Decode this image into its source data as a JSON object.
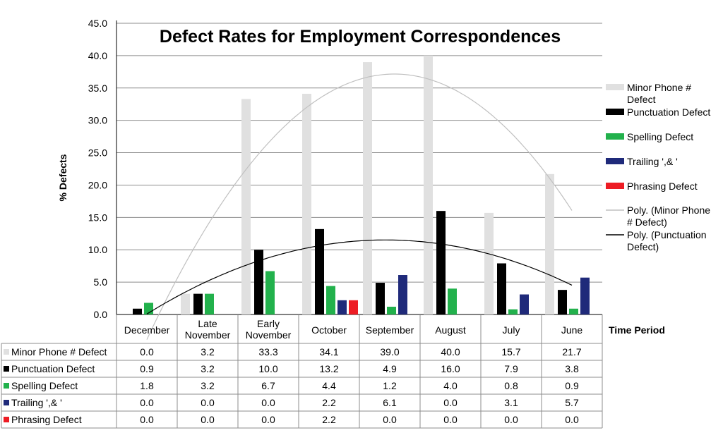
{
  "chart_data": {
    "type": "bar",
    "title": "Defect Rates for Employment Correspondences",
    "ylabel": "%  Defects",
    "xlabel": "Time Period",
    "ylim": [
      0,
      45
    ],
    "yticks": [
      "0.0",
      "5.0",
      "10.0",
      "15.0",
      "20.0",
      "25.0",
      "30.0",
      "35.0",
      "40.0",
      "45.0"
    ],
    "categories": [
      [
        "December"
      ],
      [
        "Late",
        "November"
      ],
      [
        "Early",
        "November"
      ],
      [
        "October"
      ],
      [
        "September"
      ],
      [
        "August"
      ],
      [
        "July"
      ],
      [
        "June"
      ]
    ],
    "grid": true,
    "legend_position": "right",
    "series": [
      {
        "name": "Minor Phone # Defect",
        "legend_lines": [
          "Minor Phone #",
          "Defect"
        ],
        "color": "#e0e0e0",
        "values": [
          0.0,
          3.2,
          33.3,
          34.1,
          39.0,
          40.0,
          15.7,
          21.7
        ],
        "labels": [
          "0.0",
          "3.2",
          "33.3",
          "34.1",
          "39.0",
          "40.0",
          "15.7",
          "21.7"
        ]
      },
      {
        "name": "Punctuation Defect",
        "legend_lines": [
          "Punctuation Defect"
        ],
        "color": "#000000",
        "values": [
          0.9,
          3.2,
          10.0,
          13.2,
          4.9,
          16.0,
          7.9,
          3.8
        ],
        "labels": [
          "0.9",
          "3.2",
          "10.0",
          "13.2",
          "4.9",
          "16.0",
          "7.9",
          "3.8"
        ]
      },
      {
        "name": "Spelling Defect",
        "legend_lines": [
          "Spelling Defect"
        ],
        "color": "#22b14c",
        "values": [
          1.8,
          3.2,
          6.7,
          4.4,
          1.2,
          4.0,
          0.8,
          0.9
        ],
        "labels": [
          "1.8",
          "3.2",
          "6.7",
          "4.4",
          "1.2",
          "4.0",
          "0.8",
          "0.9"
        ]
      },
      {
        "name": "Trailing ',& '",
        "legend_lines": [
          "Trailing ',& '"
        ],
        "color": "#1f2a7a",
        "values": [
          0.0,
          0.0,
          0.0,
          2.2,
          6.1,
          0.0,
          3.1,
          5.7
        ],
        "labels": [
          "0.0",
          "0.0",
          "0.0",
          "2.2",
          "6.1",
          "0.0",
          "3.1",
          "5.7"
        ]
      },
      {
        "name": "Phrasing Defect",
        "legend_lines": [
          "Phrasing Defect"
        ],
        "color": "#ed1c24",
        "values": [
          0.0,
          0.0,
          0.0,
          2.2,
          0.0,
          0.0,
          0.0,
          0.0
        ],
        "labels": [
          "0.0",
          "0.0",
          "0.0",
          "2.2",
          "0.0",
          "0.0",
          "0.0",
          "0.0"
        ]
      }
    ],
    "trendlines": [
      {
        "name": "Poly. (Minor Phone # Defect)",
        "legend_lines": [
          "Poly. (Minor Phone",
          "# Defect)"
        ],
        "series": "Minor Phone # Defect",
        "type": "polynomial",
        "color": "#c0c0c0"
      },
      {
        "name": "Poly. (Punctuation Defect)",
        "legend_lines": [
          "Poly. (Punctuation",
          "Defect)"
        ],
        "series": "Punctuation Defect",
        "type": "polynomial",
        "color": "#000000"
      }
    ]
  }
}
